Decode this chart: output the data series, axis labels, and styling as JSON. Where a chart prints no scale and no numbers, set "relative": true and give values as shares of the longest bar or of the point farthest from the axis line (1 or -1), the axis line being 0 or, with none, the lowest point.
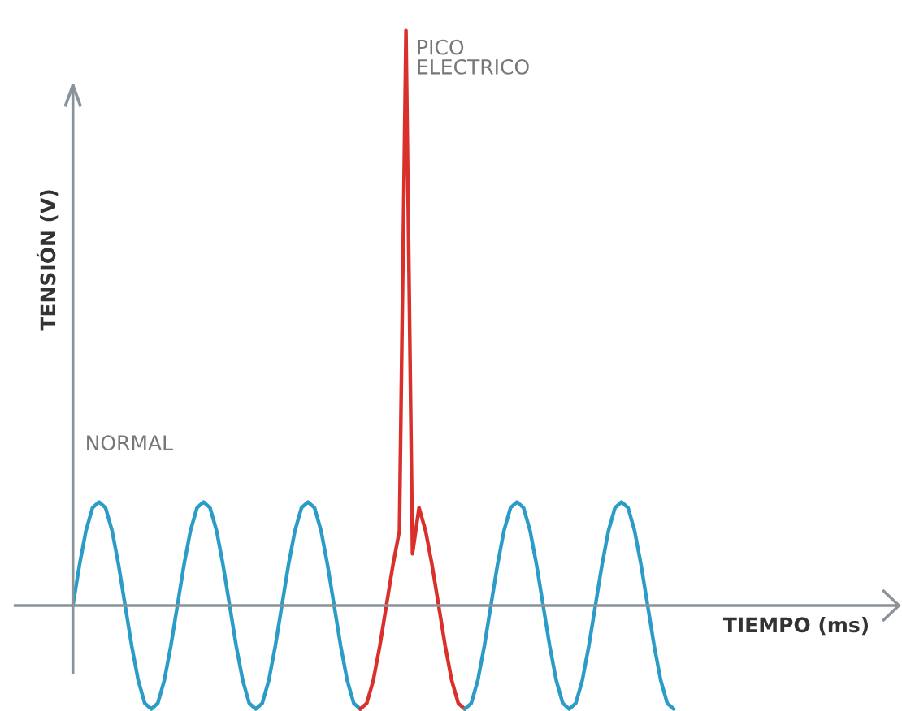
{
  "chart_data": {
    "type": "line",
    "relative": true,
    "xlabel": "TIEMPO (ms)",
    "ylabel": "TENSIÓN (V)",
    "annotations": [
      "NORMAL",
      "PICO\nELECTRICO"
    ],
    "categories": [
      null,
      null,
      null,
      null,
      null,
      null,
      null,
      null,
      null,
      null,
      null,
      null,
      null,
      null,
      null,
      null,
      null,
      null,
      null,
      null,
      null,
      null,
      null,
      null,
      null,
      null,
      null,
      null,
      null,
      null,
      null,
      null,
      null,
      null,
      null,
      null,
      null,
      null,
      null,
      null,
      null,
      null,
      null,
      null,
      null,
      null,
      null,
      null,
      null,
      null,
      null,
      null,
      null,
      null,
      null,
      null,
      null,
      null,
      null,
      null,
      null,
      null,
      null,
      null,
      null,
      null,
      null,
      null,
      null,
      null,
      null,
      null,
      null,
      null,
      null,
      null,
      null,
      null,
      null,
      null,
      null,
      null,
      null,
      null,
      null,
      null,
      null,
      null,
      null,
      null,
      null,
      null,
      null
    ],
    "series": [
      {
        "color": "#2b9cc8",
        "values": [
          0,
          0.07,
          0.13,
          0.17,
          0.18,
          0.17,
          0.13,
          0.07,
          0,
          -0.07,
          -0.13,
          -0.17,
          -0.18,
          -0.17,
          -0.13,
          -0.07,
          0,
          0.07,
          0.13,
          0.17,
          0.18,
          0.17,
          0.13,
          0.07,
          0,
          -0.07,
          -0.13,
          -0.17,
          -0.18,
          -0.17,
          -0.13,
          -0.07,
          0,
          0.07,
          0.13,
          0.17,
          0.18,
          0.17,
          0.13,
          0.07,
          0,
          -0.07,
          -0.13,
          -0.17,
          -0.18,
          null,
          null,
          null,
          null,
          null,
          null,
          null,
          null,
          null,
          null,
          null,
          null,
          null,
          null,
          null,
          null,
          null,
          null,
          null,
          null,
          null,
          null,
          null,
          null,
          null,
          null,
          null,
          null,
          null,
          null,
          null,
          null,
          null,
          null,
          null,
          null,
          null,
          null,
          null,
          null,
          null,
          null,
          null,
          null,
          null,
          null,
          null,
          null
        ]
      },
      {
        "color": "#d9302c",
        "values": [
          null,
          null,
          null,
          null,
          null,
          null,
          null,
          null,
          null,
          null,
          null,
          null,
          null,
          null,
          null,
          null,
          null,
          null,
          null,
          null,
          null,
          null,
          null,
          null,
          null,
          null,
          null,
          null,
          null,
          null,
          null,
          null,
          null,
          null,
          null,
          null,
          null,
          null,
          null,
          null,
          null,
          null,
          null,
          null,
          -0.18,
          -0.17,
          -0.13,
          -0.07,
          0,
          0.07,
          0.13,
          1,
          0.09,
          0.17,
          0.13,
          0.07,
          0,
          -0.07,
          -0.13,
          -0.17,
          -0.18,
          null,
          null,
          null,
          null,
          null,
          null,
          null,
          null,
          null,
          null,
          null,
          null,
          null,
          null,
          null,
          null,
          null,
          null,
          null,
          null,
          null,
          null,
          null,
          null,
          null,
          null,
          null,
          null,
          null,
          null,
          null,
          null
        ]
      },
      {
        "color": "#2b9cc8",
        "values": [
          null,
          null,
          null,
          null,
          null,
          null,
          null,
          null,
          null,
          null,
          null,
          null,
          null,
          null,
          null,
          null,
          null,
          null,
          null,
          null,
          null,
          null,
          null,
          null,
          null,
          null,
          null,
          null,
          null,
          null,
          null,
          null,
          null,
          null,
          null,
          null,
          null,
          null,
          null,
          null,
          null,
          null,
          null,
          null,
          null,
          null,
          null,
          null,
          null,
          null,
          null,
          null,
          null,
          null,
          null,
          null,
          null,
          null,
          null,
          null,
          -0.18,
          -0.17,
          -0.13,
          -0.07,
          0,
          0.07,
          0.13,
          0.17,
          0.18,
          0.17,
          0.13,
          0.07,
          0,
          -0.07,
          -0.13,
          -0.17,
          -0.18,
          -0.17,
          -0.13,
          -0.07,
          0,
          0.07,
          0.13,
          0.17,
          0.18,
          0.17,
          0.13,
          0.07,
          0,
          -0.07,
          -0.13,
          -0.17,
          -0.18
        ]
      }
    ]
  }
}
